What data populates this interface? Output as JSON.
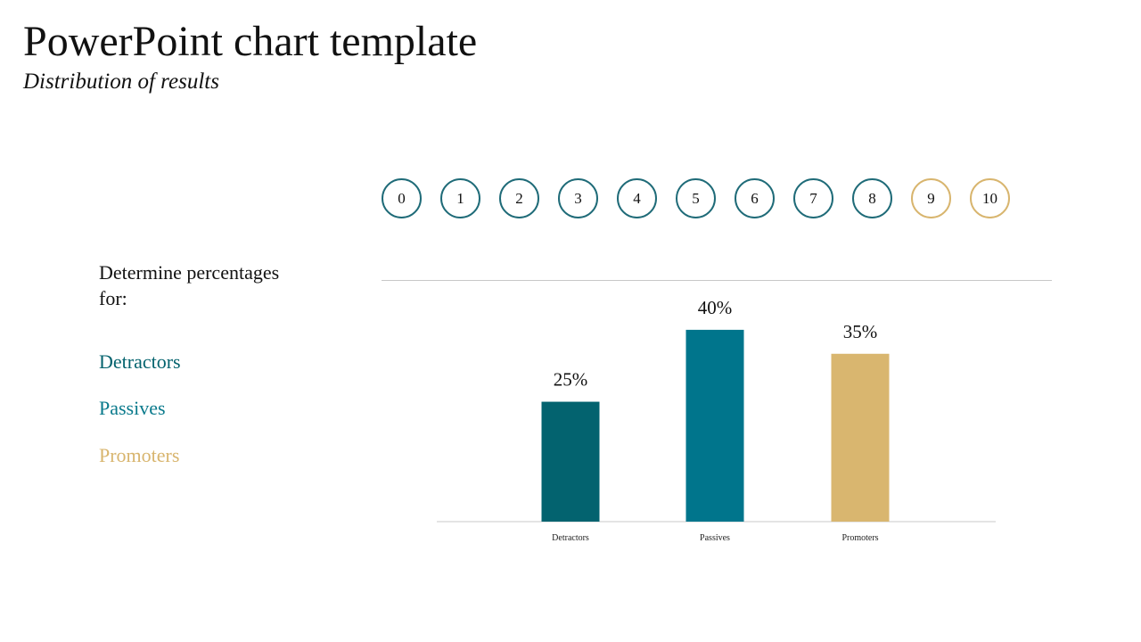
{
  "header": {
    "title": "PowerPoint chart template",
    "subtitle": "Distribution of results"
  },
  "scale": {
    "items": [
      {
        "label": "0",
        "group": "detractor"
      },
      {
        "label": "1",
        "group": "detractor"
      },
      {
        "label": "2",
        "group": "detractor"
      },
      {
        "label": "3",
        "group": "detractor"
      },
      {
        "label": "4",
        "group": "detractor"
      },
      {
        "label": "5",
        "group": "detractor"
      },
      {
        "label": "6",
        "group": "detractor"
      },
      {
        "label": "7",
        "group": "passive"
      },
      {
        "label": "8",
        "group": "passive"
      },
      {
        "label": "9",
        "group": "promoter"
      },
      {
        "label": "10",
        "group": "promoter"
      }
    ]
  },
  "sidebar": {
    "prompt": "Determine percentages for:",
    "legend": [
      {
        "label": "Detractors",
        "color": "#04636e"
      },
      {
        "label": "Passives",
        "color": "#0a7a8c"
      },
      {
        "label": "Promoters",
        "color": "#d8b56e"
      }
    ]
  },
  "chart_data": {
    "type": "bar",
    "categories": [
      "Detractors",
      "Passives",
      "Promoters"
    ],
    "values": [
      25,
      40,
      35
    ],
    "data_labels": [
      "25%",
      "40%",
      "35%"
    ],
    "colors": [
      "#03636f",
      "#00758c",
      "#d9b66f"
    ],
    "ylim": [
      0,
      45
    ],
    "grid": false,
    "legend": "none"
  }
}
